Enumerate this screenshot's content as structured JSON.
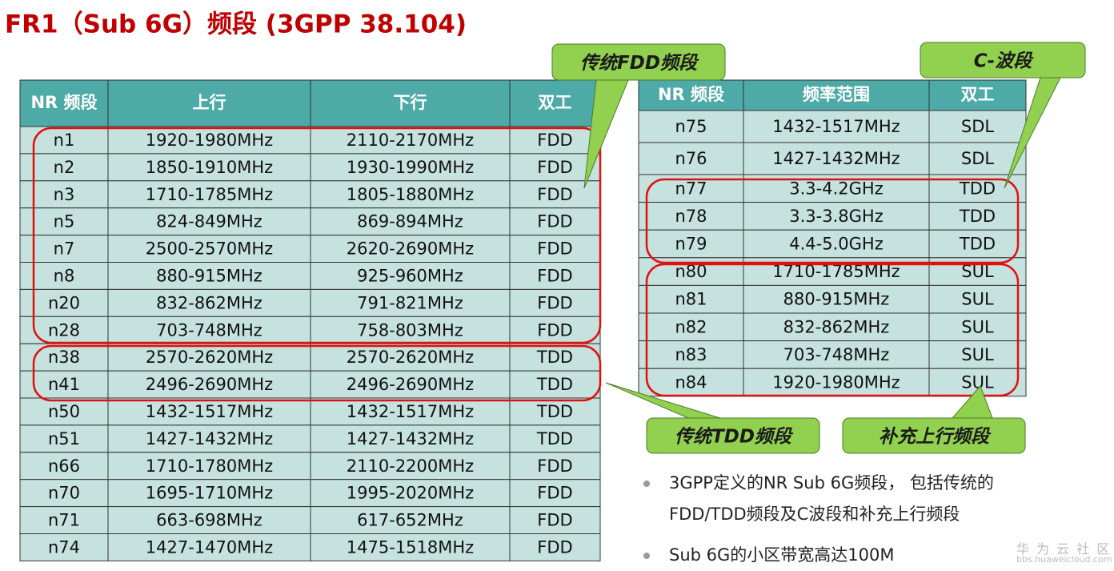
{
  "title": "FR1（Sub 6G）频段 (3GPP 38.104)",
  "left_table": {
    "header": [
      "NR 频段",
      "上行",
      "下行",
      "双工"
    ],
    "rows": [
      [
        "n1",
        "1920-1980MHz",
        "2110-2170MHz",
        "FDD"
      ],
      [
        "n2",
        "1850-1910MHz",
        "1930-1990MHz",
        "FDD"
      ],
      [
        "n3",
        "1710-1785MHz",
        "1805-1880MHz",
        "FDD"
      ],
      [
        "n5",
        "824-849MHz",
        "869-894MHz",
        "FDD"
      ],
      [
        "n7",
        "2500-2570MHz",
        "2620-2690MHz",
        "FDD"
      ],
      [
        "n8",
        "880-915MHz",
        "925-960MHz",
        "FDD"
      ],
      [
        "n20",
        "832-862MHz",
        "791-821MHz",
        "FDD"
      ],
      [
        "n28",
        "703-748MHz",
        "758-803MHz",
        "FDD"
      ],
      [
        "n38",
        "2570-2620MHz",
        "2570-2620MHz",
        "TDD"
      ],
      [
        "n41",
        "2496-2690MHz",
        "2496-2690MHz",
        "TDD"
      ],
      [
        "n50",
        "1432-1517MHz",
        "1432-1517MHz",
        "TDD"
      ],
      [
        "n51",
        "1427-1432MHz",
        "1427-1432MHz",
        "TDD"
      ],
      [
        "n66",
        "1710-1780MHz",
        "2110-2200MHz",
        "FDD"
      ],
      [
        "n70",
        "1695-1710MHz",
        "1995-2020MHz",
        "FDD"
      ],
      [
        "n71",
        "663-698MHz",
        "617-652MHz",
        "FDD"
      ],
      [
        "n74",
        "1427-1470MHz",
        "1475-1518MHz",
        "FDD"
      ]
    ]
  },
  "right_table": {
    "header": [
      "NR 频段",
      "频率范围",
      "双工"
    ],
    "rows": [
      [
        "n75",
        "1432-1517MHz",
        "SDL"
      ],
      [
        "n76",
        "1427-1432MHz",
        "SDL"
      ],
      [
        "n77",
        "3.3-4.2GHz",
        "TDD"
      ],
      [
        "n78",
        "3.3-3.8GHz",
        "TDD"
      ],
      [
        "n79",
        "4.4-5.0GHz",
        "TDD"
      ],
      [
        "n80",
        "1710-1785MHz",
        "SUL"
      ],
      [
        "n81",
        "880-915MHz",
        "SUL"
      ],
      [
        "n82",
        "832-862MHz",
        "SUL"
      ],
      [
        "n83",
        "703-748MHz",
        "SUL"
      ],
      [
        "n84",
        "1920-1980MHz",
        "SUL"
      ]
    ]
  },
  "callouts": [
    "传统FDD频段",
    "C-波段",
    "传统TDD频段",
    "补充上行频段"
  ],
  "bullets": [
    "3GPP定义的NR Sub 6G频段， 包括传统的FDD/TDD频段及C波段和补充上行频段",
    "Sub 6G的小区带宽高达100M"
  ],
  "watermark": {
    "name": "华 为 云 社 区",
    "url": "bbs.huaweicloud.com"
  }
}
